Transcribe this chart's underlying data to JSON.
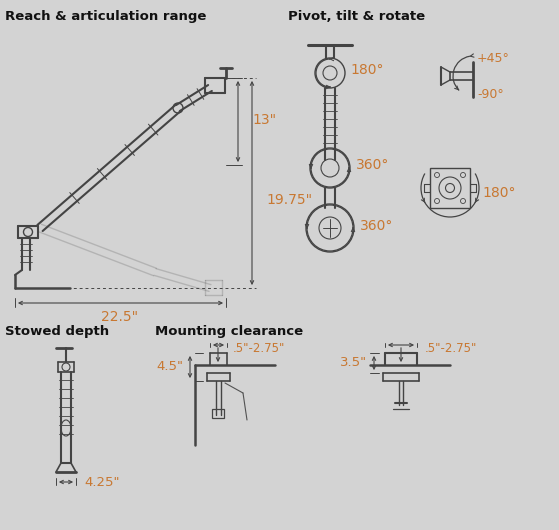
{
  "bg_color": "#d3d3d3",
  "line_color": "#444444",
  "text_color": "#111111",
  "orange_color": "#c87832",
  "sections": {
    "reach_title": "Reach & articulation range",
    "pivot_title": "Pivot, tilt & rotate",
    "stowed_title": "Stowed depth",
    "mounting_title": "Mounting clearance"
  },
  "dimensions": {
    "h13": "13\"",
    "h1975": "19.75\"",
    "w225": "22.5\"",
    "w425": "4.25\"",
    "d45": "4.5\"",
    "clamp1": ".5\"-2.75\"",
    "clamp2": ".5\"-2.75\"",
    "h35": "3.5\"",
    "a180_1": "180°",
    "a360_1": "360°",
    "a360_2": "360°",
    "a45": "+45°",
    "aneg90": "-90°",
    "a180_2": "180°"
  }
}
